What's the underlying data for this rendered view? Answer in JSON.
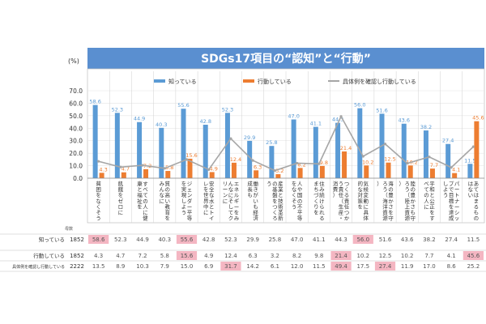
{
  "title": "SDGs17項目の“認知”と“行動”",
  "y_unit": "(%)",
  "legend": {
    "know": "知っている",
    "act": "行動している",
    "concrete": "具体例を確認し行動している"
  },
  "colors": {
    "know": "#5b9bd5",
    "act": "#ed7d31",
    "concrete": "#a6a6a6",
    "title_bg": "#5a8fd0",
    "highlight": "#f4b6c2"
  },
  "table": {
    "sample_header": "母数",
    "rows": [
      {
        "label": "知っている",
        "n": "1852"
      },
      {
        "label": "行動している",
        "n": "1852"
      },
      {
        "label": "具体例を確認し行動している",
        "n": "2222"
      }
    ]
  },
  "chart_data": {
    "type": "bar",
    "title": "SDGs17項目の“認知”と“行動”",
    "ylabel": "(%)",
    "ylim": [
      0,
      70
    ],
    "yticks": [
      "0.0",
      "10.0",
      "20.0",
      "30.0",
      "40.0",
      "50.0",
      "60.0",
      "70.0"
    ],
    "categories": [
      "貧困をなくそう",
      "飢餓をゼロに",
      "すべての人に健康と福祉を",
      "質の高い教育をみんなに",
      "ジェンダー平等を実現しよう",
      "安全な水とトイレを世界中に",
      "エネルギーをみんなにそしてクリーンに",
      "働きがいも経済成長も",
      "産業と技術革新の基盤をつくろう",
      "人や国の不平等をなくそう",
      "住み続けられるまちづくりを",
      "つくる責任つかう責任（生産・消費）",
      "気候変動に具体的な対策を",
      "海の豊かさを守ろう（海洋資源）",
      "陸の豊かさも守ろう（陸上資源）",
      "平和と公正をすべての人に",
      "パートナーシップで目標を達成しよう",
      "あてはまるものはない"
    ],
    "series": [
      {
        "name": "知っている",
        "kind": "bar",
        "values": [
          58.6,
          52.3,
          44.9,
          40.3,
          55.6,
          42.8,
          52.3,
          29.9,
          25.8,
          47.0,
          41.1,
          44.3,
          56.0,
          51.6,
          43.6,
          38.2,
          27.4,
          11.5
        ]
      },
      {
        "name": "行動している",
        "kind": "bar",
        "values": [
          4.3,
          4.7,
          7.2,
          5.8,
          15.6,
          4.9,
          12.4,
          6.3,
          3.2,
          8.2,
          9.8,
          21.4,
          10.2,
          12.5,
          10.2,
          7.7,
          4.1,
          45.6
        ]
      },
      {
        "name": "具体例を確認し行動している",
        "kind": "line",
        "values": [
          13.5,
          8.9,
          10.3,
          7.9,
          15.0,
          6.9,
          31.7,
          14.2,
          6.1,
          12.0,
          11.5,
          49.4,
          17.5,
          27.4,
          11.9,
          17.0,
          8.6,
          25.2
        ]
      }
    ],
    "highlights": {
      "know": [
        0,
        4,
        12
      ],
      "act": [
        4,
        11,
        17
      ],
      "concrete": [
        6,
        11,
        13
      ]
    },
    "legend_position": "top"
  }
}
